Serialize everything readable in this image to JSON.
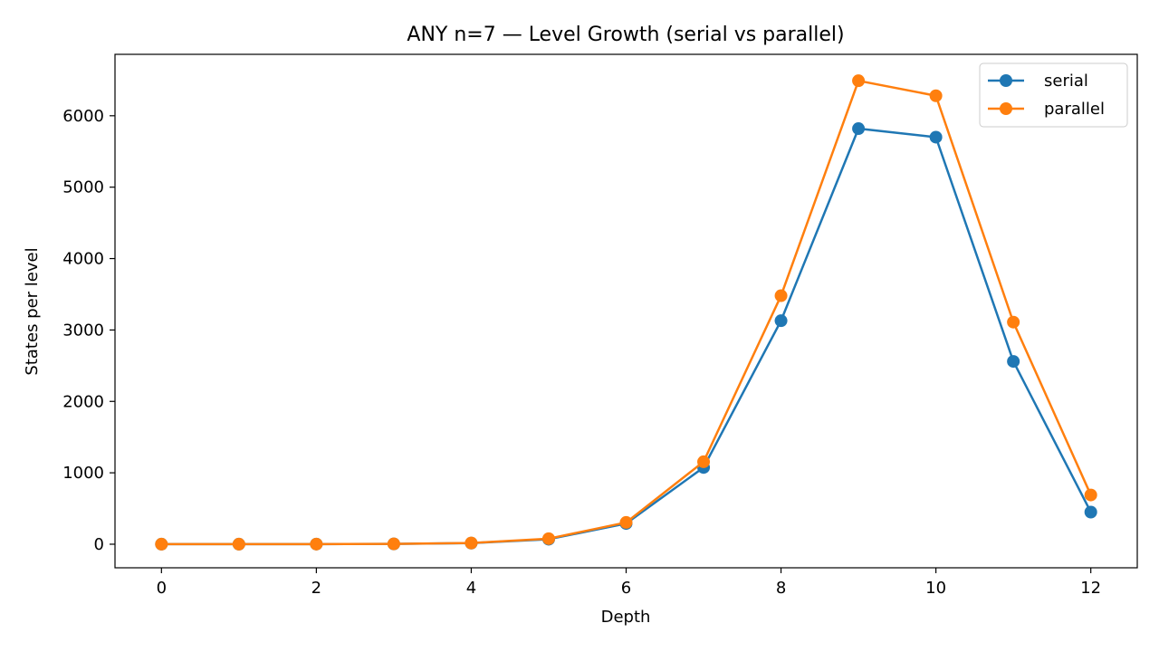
{
  "chart_data": {
    "type": "line",
    "title": "ANY n=7 — Level Growth (serial vs parallel)",
    "xlabel": "Depth",
    "ylabel": "States per level",
    "x": [
      0,
      1,
      2,
      3,
      4,
      5,
      6,
      7,
      8,
      9,
      10,
      11,
      12
    ],
    "xlim": [
      -0.6,
      12.6
    ],
    "ylim": [
      -330,
      6860
    ],
    "xticks": [
      0,
      2,
      4,
      6,
      8,
      10,
      12
    ],
    "yticks": [
      0,
      1000,
      2000,
      3000,
      4000,
      5000,
      6000
    ],
    "grid": false,
    "legend_position": "upper right",
    "series": [
      {
        "name": "serial",
        "color": "#1f77b4",
        "marker": "circle",
        "values": [
          1,
          1,
          2,
          4,
          15,
          70,
          290,
          1075,
          3130,
          5820,
          5700,
          2560,
          450
        ]
      },
      {
        "name": "parallel",
        "color": "#ff7f0e",
        "marker": "circle",
        "values": [
          1,
          1,
          2,
          5,
          17,
          78,
          305,
          1155,
          3480,
          6490,
          6280,
          3110,
          690
        ]
      }
    ]
  }
}
